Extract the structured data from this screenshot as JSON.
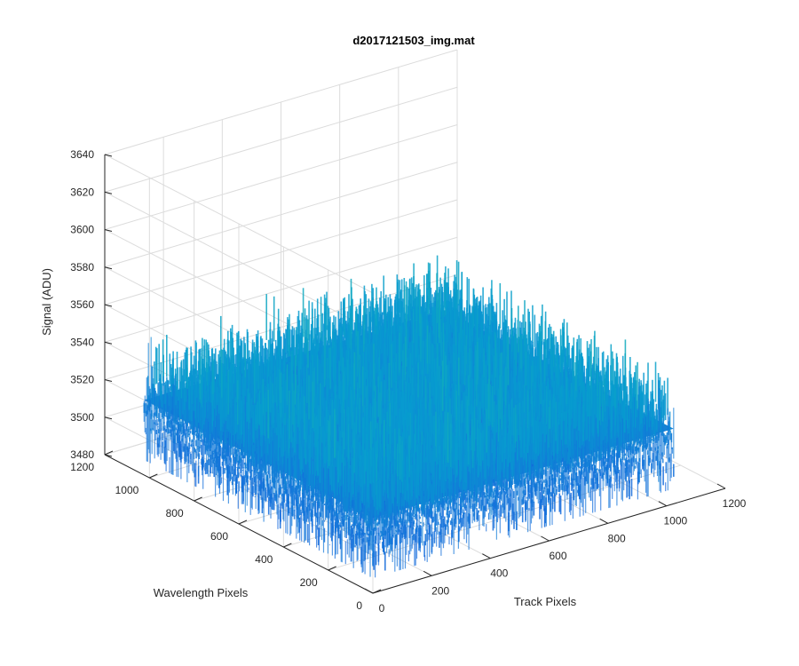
{
  "chart_data": {
    "type": "surface",
    "title": "d2017121503_img.mat",
    "xlabel": "Track Pixels",
    "ylabel": "Wavelength Pixels",
    "zlabel": "Signal (ADU)",
    "xlim": [
      0,
      1200
    ],
    "ylim": [
      0,
      1200
    ],
    "zlim": [
      3480,
      3640
    ],
    "x_ticks": [
      0,
      200,
      400,
      600,
      800,
      1000,
      1200
    ],
    "y_ticks": [
      0,
      200,
      400,
      600,
      800,
      1000,
      1200
    ],
    "z_ticks": [
      3480,
      3500,
      3520,
      3540,
      3560,
      3580,
      3600,
      3620,
      3640
    ],
    "grid": true,
    "colormap": "parula",
    "surface": {
      "x_range": [
        0,
        1024
      ],
      "y_range": [
        0,
        1024
      ],
      "mean_signal": 3520,
      "noise_range": [
        3488,
        3585
      ]
    }
  }
}
